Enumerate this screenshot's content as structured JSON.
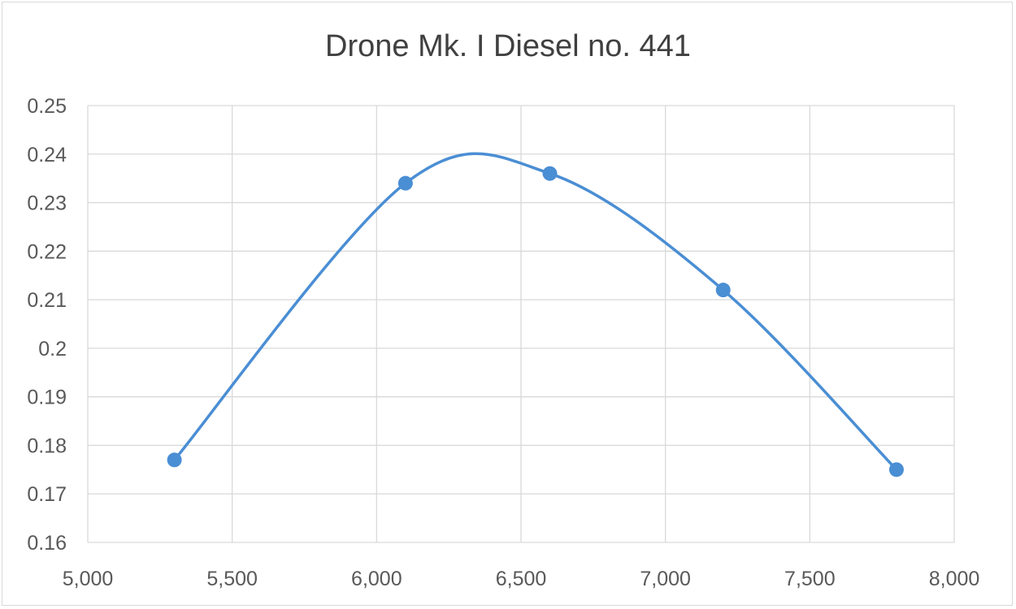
{
  "chart_data": {
    "type": "scatter",
    "title": "Drone Mk. I Diesel no. 441",
    "xlabel": "",
    "ylabel": "",
    "xlim": [
      5000,
      8000
    ],
    "ylim": [
      0.16,
      0.25
    ],
    "x_ticks": [
      "5,000",
      "5,500",
      "6,000",
      "6,500",
      "7,000",
      "7,500",
      "8,000"
    ],
    "y_ticks": [
      "0.16",
      "0.17",
      "0.18",
      "0.19",
      "0.2",
      "0.21",
      "0.22",
      "0.23",
      "0.24",
      "0.25"
    ],
    "grid": true,
    "smooth_line": true,
    "series": [
      {
        "color": "#4a8ed4",
        "points": [
          {
            "x": 5300,
            "y": 0.177
          },
          {
            "x": 6100,
            "y": 0.234
          },
          {
            "x": 6600,
            "y": 0.236
          },
          {
            "x": 7200,
            "y": 0.212
          },
          {
            "x": 7800,
            "y": 0.175
          }
        ]
      }
    ]
  }
}
